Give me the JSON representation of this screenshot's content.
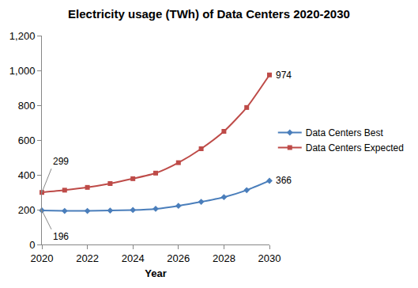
{
  "chart_data": {
    "type": "line",
    "title": "Electricity usage (TWh) of Data Centers 2020-2030",
    "x_label": "Year",
    "x": [
      2020,
      2021,
      2022,
      2023,
      2024,
      2025,
      2026,
      2027,
      2028,
      2029,
      2030
    ],
    "series": [
      {
        "name": "Data Centers Best",
        "color": "#4a7ebb",
        "marker": "diamond",
        "line_style": "solid",
        "values": [
          196,
          193,
          193,
          195,
          198,
          205,
          222,
          245,
          272,
          312,
          366
        ]
      },
      {
        "name": "Data Centers Expected",
        "color": "#be4b48",
        "marker": "square",
        "line_style": "solid",
        "values": [
          299,
          312,
          328,
          350,
          378,
          410,
          470,
          550,
          650,
          787,
          974
        ]
      }
    ],
    "annotations": [
      {
        "series": "Data Centers Expected",
        "x": 2020
      },
      {
        "series": "Data Centers Best",
        "x": 2020
      },
      {
        "series": "Data Centers Expected",
        "x": 2030
      },
      {
        "series": "Data Centers Best",
        "x": 2030
      }
    ],
    "xlim": [
      2020,
      2030
    ],
    "xticks": [
      2020,
      2022,
      2024,
      2026,
      2028,
      2030
    ],
    "ylim": [
      0,
      1200
    ],
    "yticks": [
      0,
      200,
      400,
      600,
      800,
      {
        "value": 1000,
        "label": "1,000"
      },
      {
        "value": 1200,
        "label": "1,200"
      }
    ],
    "grid": false,
    "legend": "right"
  }
}
